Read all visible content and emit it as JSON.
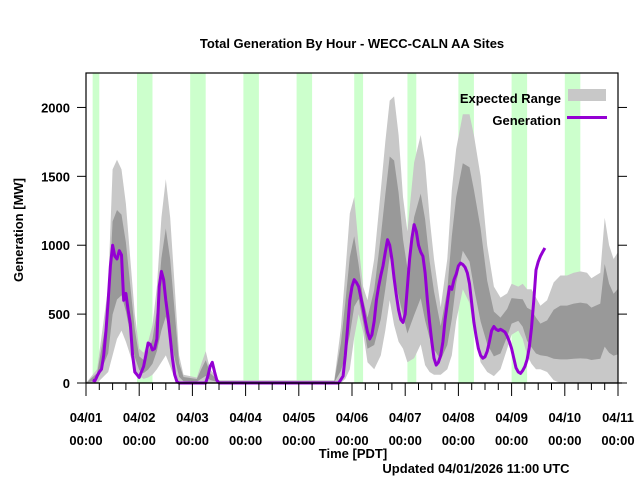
{
  "chart_data": {
    "type": "area",
    "title": "Total Generation By Hour - WECC-CALN AA Sites",
    "xlabel": "Time [PDT]",
    "ylabel": "Generation [MW]",
    "footer": "Updated 04/01/2026 11:00 UTC",
    "ylim": [
      0,
      2250
    ],
    "xlim_hours": [
      0,
      240
    ],
    "yticks": [
      0,
      500,
      1000,
      1500,
      2000
    ],
    "ytick_labels": [
      "0",
      "500",
      "1000",
      "1500",
      "2000"
    ],
    "xticks": [
      {
        "date": "04/01",
        "time": "00:00"
      },
      {
        "date": "04/02",
        "time": "00:00"
      },
      {
        "date": "04/03",
        "time": "00:00"
      },
      {
        "date": "04/04",
        "time": "00:00"
      },
      {
        "date": "04/05",
        "time": "00:00"
      },
      {
        "date": "04/06",
        "time": "00:00"
      },
      {
        "date": "04/07",
        "time": "00:00"
      },
      {
        "date": "04/08",
        "time": "00:00"
      },
      {
        "date": "04/09",
        "time": "00:00"
      },
      {
        "date": "04/10",
        "time": "00:00"
      },
      {
        "date": "04/11",
        "time": "00:00"
      }
    ],
    "grid": false,
    "legend": {
      "placement": "top-right",
      "entries": [
        {
          "label": "Expected Range",
          "color": "#c8c8c8"
        },
        {
          "label": "Generation",
          "color": "#9400d3"
        }
      ]
    },
    "colors": {
      "daylight_band": "#ccffcc",
      "outer_range": "#c8c8c8",
      "inner_range": "#999999",
      "generation": "#9400d3"
    },
    "daylight_bands_hours": [
      [
        3,
        6
      ],
      [
        23,
        30
      ],
      [
        47,
        54
      ],
      [
        71,
        78
      ],
      [
        95,
        102
      ],
      [
        121,
        125
      ],
      [
        145,
        149
      ],
      [
        168,
        175
      ],
      [
        192,
        199
      ],
      [
        216,
        223
      ]
    ],
    "series": [
      {
        "name": "Generation",
        "x_hours": [
          3,
          4,
          5,
          6,
          7,
          8,
          9,
          10,
          11,
          12,
          13,
          14,
          15,
          16,
          17,
          18,
          19,
          20,
          21,
          22,
          23,
          24,
          25,
          26,
          27,
          28,
          29,
          30,
          31,
          32,
          33,
          34,
          35,
          36,
          37,
          38,
          39,
          40,
          41,
          42,
          43,
          44,
          45,
          46,
          47,
          48,
          49,
          50,
          51,
          52,
          53,
          54,
          55,
          56,
          57,
          58,
          59,
          60,
          61,
          62,
          63,
          64,
          65,
          66,
          67,
          68,
          69,
          70,
          71,
          72,
          73,
          74,
          75,
          76,
          77,
          78,
          80,
          85,
          90,
          100,
          105,
          110,
          112,
          114,
          116,
          117,
          118,
          119,
          120,
          121,
          122,
          123,
          124,
          125,
          126,
          127,
          128,
          129,
          130,
          131,
          132,
          133,
          134,
          135,
          136,
          137,
          138,
          139,
          140,
          141,
          142,
          143,
          144,
          145,
          146,
          147,
          148,
          149,
          150,
          151,
          152,
          153,
          154,
          155,
          156,
          157,
          158,
          159,
          160,
          161,
          162,
          163,
          164,
          165,
          166,
          167,
          168,
          169,
          170,
          171,
          172,
          173,
          174,
          175,
          176,
          177,
          178,
          179,
          180,
          181,
          182,
          183,
          184,
          185,
          186,
          187,
          188,
          189,
          190,
          191,
          192,
          193,
          194,
          195,
          196,
          197,
          198,
          199,
          200,
          201,
          202,
          203,
          204,
          205,
          206,
          207,
          208,
          209,
          210,
          211,
          212,
          213,
          214,
          215,
          216,
          217,
          218,
          219,
          220,
          221,
          222,
          223,
          224,
          225,
          226,
          227,
          228,
          229,
          230,
          231,
          232,
          233,
          234,
          235,
          236,
          237,
          238,
          239,
          240
        ],
        "values": [
          20,
          15,
          50,
          80,
          100,
          200,
          380,
          600,
          850,
          1000,
          920,
          900,
          960,
          930,
          600,
          650,
          530,
          430,
          200,
          80,
          60,
          40,
          80,
          120,
          200,
          290,
          280,
          240,
          250,
          320,
          700,
          810,
          750,
          600,
          480,
          330,
          180,
          60,
          10,
          0,
          0,
          0,
          0,
          0,
          0,
          0,
          0,
          0,
          0,
          0,
          0,
          0,
          50,
          120,
          150,
          80,
          20,
          0,
          0,
          0,
          0,
          0,
          0,
          0,
          0,
          0,
          0,
          0,
          0,
          0,
          0,
          0,
          0,
          0,
          0,
          0,
          0,
          0,
          0,
          0,
          0,
          0,
          0,
          0,
          50,
          200,
          400,
          600,
          700,
          750,
          730,
          700,
          620,
          540,
          450,
          370,
          320,
          350,
          450,
          600,
          700,
          780,
          850,
          950,
          1040,
          1000,
          900,
          760,
          640,
          530,
          460,
          440,
          500,
          700,
          900,
          1050,
          1150,
          1100,
          1000,
          950,
          920,
          800,
          600,
          440,
          300,
          180,
          130,
          150,
          200,
          300,
          460,
          580,
          700,
          680,
          750,
          790,
          850,
          870,
          860,
          840,
          800,
          720,
          580,
          440,
          340,
          250,
          200,
          180,
          190,
          230,
          300,
          380,
          410,
          390,
          380,
          390,
          380,
          370,
          340,
          300,
          250,
          180,
          110,
          80,
          70,
          90,
          120,
          170,
          260,
          400,
          600,
          820,
          880,
          920,
          950,
          980
        ]
      },
      {
        "name": "Expected Range (outer)",
        "x_hours": [
          0,
          5,
          10,
          12,
          14,
          16,
          18,
          20,
          22,
          24,
          26,
          28,
          30,
          32,
          34,
          36,
          38,
          40,
          42,
          44,
          50,
          52,
          54,
          56,
          60,
          70,
          80,
          100,
          112,
          115,
          117,
          119,
          121,
          123,
          125,
          127,
          130,
          133,
          135,
          137,
          139,
          141,
          143,
          145,
          148,
          151,
          153,
          155,
          157,
          160,
          163,
          165,
          167,
          170,
          173,
          175,
          178,
          181,
          184,
          187,
          190,
          192,
          195,
          197,
          199,
          201,
          203,
          205,
          208,
          211,
          214,
          217,
          220,
          223,
          226,
          228,
          230,
          232,
          234,
          236,
          238,
          240
        ],
        "upper": [
          0,
          100,
          700,
          1550,
          1620,
          1550,
          1300,
          900,
          500,
          250,
          220,
          300,
          420,
          700,
          1200,
          1480,
          1200,
          700,
          200,
          60,
          40,
          140,
          230,
          100,
          20,
          20,
          20,
          20,
          20,
          400,
          800,
          1230,
          1350,
          1000,
          700,
          600,
          900,
          1400,
          1750,
          2050,
          2080,
          1800,
          1350,
          1100,
          1600,
          1800,
          1600,
          1200,
          900,
          550,
          900,
          1400,
          1700,
          1950,
          1950,
          1800,
          1500,
          1000,
          700,
          620,
          650,
          720,
          700,
          720,
          680,
          680,
          620,
          560,
          600,
          730,
          780,
          780,
          800,
          810,
          800,
          760,
          780,
          800,
          1200,
          1000,
          900,
          950
        ],
        "lower": [
          0,
          0,
          80,
          200,
          320,
          380,
          300,
          200,
          100,
          50,
          30,
          40,
          60,
          100,
          150,
          200,
          120,
          30,
          0,
          0,
          0,
          0,
          0,
          0,
          0,
          0,
          0,
          0,
          0,
          0,
          30,
          100,
          330,
          500,
          370,
          150,
          100,
          200,
          380,
          600,
          420,
          300,
          250,
          150,
          180,
          280,
          130,
          80,
          60,
          60,
          100,
          200,
          450,
          680,
          580,
          380,
          150,
          80,
          50,
          100,
          250,
          350,
          380,
          320,
          200,
          140,
          100,
          100,
          80,
          20,
          0,
          0,
          0,
          0,
          0,
          0,
          0,
          0,
          0,
          0,
          0,
          0
        ]
      }
    ]
  }
}
